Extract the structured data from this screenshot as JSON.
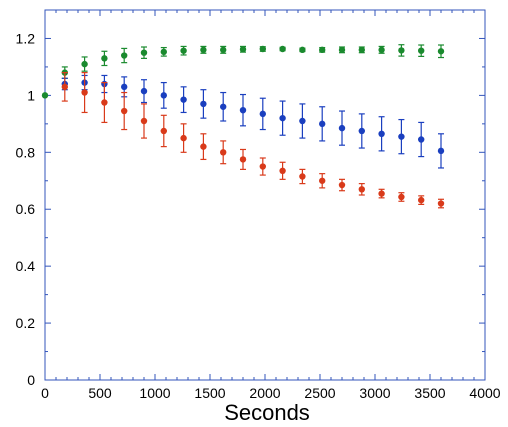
{
  "chart_data": {
    "type": "scatter",
    "title": "",
    "xlabel": "Seconds",
    "ylabel": "",
    "xlim": [
      0,
      4000
    ],
    "ylim": [
      0,
      1.3
    ],
    "x_ticks": [
      0,
      500,
      1000,
      1500,
      2000,
      2500,
      3000,
      3500,
      4000
    ],
    "x_tick_labels": [
      "0",
      "500",
      "1000",
      "1500",
      "2000",
      "2500",
      "3000",
      "3500",
      "4000"
    ],
    "y_ticks": [
      0,
      0.2,
      0.4,
      0.6,
      0.8,
      1,
      1.2
    ],
    "y_tick_labels": [
      "0",
      "0.2",
      "0.4",
      "0.6",
      "0.8",
      "1",
      "1.2"
    ],
    "grid": false,
    "legend": "none",
    "axis_color": "#3355bb",
    "series": [
      {
        "color": "#1a8a2e",
        "x": [
          0,
          180,
          360,
          540,
          720,
          900,
          1080,
          1260,
          1440,
          1620,
          1800,
          1980,
          2160,
          2340,
          2520,
          2700,
          2880,
          3060,
          3240,
          3420,
          3600
        ],
        "y": [
          1.0,
          1.08,
          1.11,
          1.13,
          1.14,
          1.15,
          1.153,
          1.157,
          1.16,
          1.16,
          1.162,
          1.163,
          1.163,
          1.16,
          1.16,
          1.16,
          1.16,
          1.16,
          1.158,
          1.157,
          1.155
        ],
        "err": [
          0,
          0.02,
          0.025,
          0.025,
          0.025,
          0.02,
          0.015,
          0.015,
          0.012,
          0.012,
          0.01,
          0.008,
          0.006,
          0.006,
          0.008,
          0.01,
          0.01,
          0.012,
          0.02,
          0.02,
          0.022
        ]
      },
      {
        "color": "#1a3fbf",
        "x": [
          180,
          360,
          540,
          720,
          900,
          1080,
          1260,
          1440,
          1620,
          1800,
          1980,
          2160,
          2340,
          2520,
          2700,
          2880,
          3060,
          3240,
          3420,
          3600
        ],
        "y": [
          1.04,
          1.045,
          1.04,
          1.03,
          1.015,
          1.0,
          0.985,
          0.97,
          0.96,
          0.948,
          0.935,
          0.92,
          0.91,
          0.9,
          0.885,
          0.875,
          0.865,
          0.855,
          0.845,
          0.805
        ],
        "err": [
          0.02,
          0.025,
          0.03,
          0.035,
          0.04,
          0.045,
          0.045,
          0.05,
          0.05,
          0.055,
          0.055,
          0.06,
          0.06,
          0.06,
          0.06,
          0.06,
          0.06,
          0.06,
          0.06,
          0.06
        ]
      },
      {
        "color": "#d93a1a",
        "x": [
          180,
          360,
          540,
          720,
          900,
          1080,
          1260,
          1440,
          1620,
          1800,
          1980,
          2160,
          2340,
          2520,
          2700,
          2880,
          3060,
          3240,
          3420,
          3600
        ],
        "y": [
          1.03,
          1.01,
          0.975,
          0.945,
          0.91,
          0.875,
          0.85,
          0.82,
          0.8,
          0.775,
          0.75,
          0.735,
          0.715,
          0.7,
          0.685,
          0.67,
          0.655,
          0.643,
          0.632,
          0.62
        ],
        "err": [
          0.05,
          0.07,
          0.07,
          0.065,
          0.06,
          0.055,
          0.05,
          0.045,
          0.04,
          0.035,
          0.03,
          0.03,
          0.025,
          0.025,
          0.02,
          0.02,
          0.015,
          0.015,
          0.015,
          0.015
        ]
      }
    ]
  }
}
